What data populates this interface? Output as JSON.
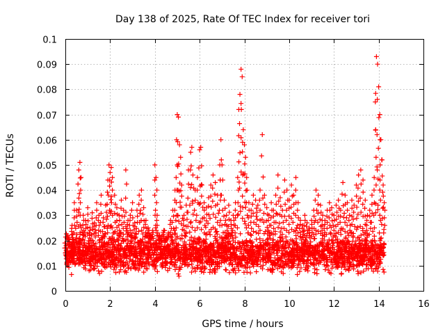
{
  "chart_data": {
    "type": "scatter",
    "title": "Day 138 of 2025, Rate Of TEC Index for receiver tori",
    "xlabel": "GPS time / hours",
    "ylabel": "ROTI / TECUs",
    "xlim": [
      0,
      16
    ],
    "ylim": [
      0,
      0.1
    ],
    "xticks": [
      0,
      2,
      4,
      6,
      8,
      10,
      12,
      14,
      16
    ],
    "yticks": [
      0,
      0.01,
      0.02,
      0.03,
      0.04,
      0.05,
      0.06,
      0.07,
      0.08,
      0.09,
      0.1
    ],
    "grid": true,
    "marker": "+",
    "color": "#ff0000",
    "data_x_range": [
      0,
      14.25
    ],
    "baseline_band": [
      0.005,
      0.025
    ],
    "series": [
      {
        "name": "ROTI",
        "points": [
          [
            0.0,
            0.015
          ],
          [
            0.1,
            0.022
          ],
          [
            0.2,
            0.018
          ],
          [
            0.3,
            0.026
          ],
          [
            0.4,
            0.035
          ],
          [
            0.5,
            0.032
          ],
          [
            0.6,
            0.048
          ],
          [
            0.65,
            0.051
          ],
          [
            0.7,
            0.045
          ],
          [
            0.8,
            0.03
          ],
          [
            0.9,
            0.028
          ],
          [
            1.0,
            0.033
          ],
          [
            1.1,
            0.025
          ],
          [
            1.2,
            0.031
          ],
          [
            1.3,
            0.027
          ],
          [
            1.4,
            0.035
          ],
          [
            1.5,
            0.03
          ],
          [
            1.6,
            0.038
          ],
          [
            1.7,
            0.029
          ],
          [
            1.8,
            0.034
          ],
          [
            1.9,
            0.044
          ],
          [
            1.95,
            0.05
          ],
          [
            2.0,
            0.047
          ],
          [
            2.05,
            0.049
          ],
          [
            2.1,
            0.045
          ],
          [
            2.2,
            0.038
          ],
          [
            2.3,
            0.033
          ],
          [
            2.4,
            0.03
          ],
          [
            2.5,
            0.036
          ],
          [
            2.6,
            0.032
          ],
          [
            2.7,
            0.048
          ],
          [
            2.8,
            0.028
          ],
          [
            2.9,
            0.03
          ],
          [
            3.0,
            0.035
          ],
          [
            3.1,
            0.027
          ],
          [
            3.2,
            0.032
          ],
          [
            3.3,
            0.038
          ],
          [
            3.4,
            0.04
          ],
          [
            3.5,
            0.033
          ],
          [
            3.6,
            0.028
          ],
          [
            3.7,
            0.025
          ],
          [
            3.8,
            0.022
          ],
          [
            3.9,
            0.024
          ],
          [
            4.0,
            0.05
          ],
          [
            4.05,
            0.045
          ],
          [
            4.1,
            0.03
          ],
          [
            4.2,
            0.022
          ],
          [
            4.3,
            0.02
          ],
          [
            4.4,
            0.024
          ],
          [
            4.5,
            0.021
          ],
          [
            4.6,
            0.023
          ],
          [
            4.7,
            0.028
          ],
          [
            4.8,
            0.032
          ],
          [
            4.9,
            0.04
          ],
          [
            4.95,
            0.045
          ],
          [
            5.0,
            0.07
          ],
          [
            5.05,
            0.069
          ],
          [
            5.1,
            0.058
          ],
          [
            5.15,
            0.053
          ],
          [
            5.2,
            0.042
          ],
          [
            5.3,
            0.03
          ],
          [
            5.4,
            0.034
          ],
          [
            5.5,
            0.048
          ],
          [
            5.6,
            0.055
          ],
          [
            5.65,
            0.057
          ],
          [
            5.7,
            0.046
          ],
          [
            5.8,
            0.04
          ],
          [
            5.9,
            0.045
          ],
          [
            6.0,
            0.056
          ],
          [
            6.05,
            0.057
          ],
          [
            6.1,
            0.042
          ],
          [
            6.2,
            0.035
          ],
          [
            6.3,
            0.033
          ],
          [
            6.4,
            0.037
          ],
          [
            6.5,
            0.042
          ],
          [
            6.6,
            0.046
          ],
          [
            6.7,
            0.043
          ],
          [
            6.8,
            0.038
          ],
          [
            6.9,
            0.05
          ],
          [
            6.95,
            0.06
          ],
          [
            7.0,
            0.05
          ],
          [
            7.1,
            0.036
          ],
          [
            7.2,
            0.03
          ],
          [
            7.3,
            0.034
          ],
          [
            7.4,
            0.028
          ],
          [
            7.5,
            0.03
          ],
          [
            7.6,
            0.035
          ],
          [
            7.7,
            0.045
          ],
          [
            7.75,
            0.072
          ],
          [
            7.8,
            0.078
          ],
          [
            7.85,
            0.088
          ],
          [
            7.9,
            0.085
          ],
          [
            7.95,
            0.064
          ],
          [
            8.0,
            0.058
          ],
          [
            8.05,
            0.053
          ],
          [
            8.1,
            0.045
          ],
          [
            8.2,
            0.035
          ],
          [
            8.3,
            0.032
          ],
          [
            8.4,
            0.038
          ],
          [
            8.5,
            0.036
          ],
          [
            8.6,
            0.034
          ],
          [
            8.7,
            0.04
          ],
          [
            8.8,
            0.062
          ],
          [
            8.9,
            0.038
          ],
          [
            9.0,
            0.033
          ],
          [
            9.1,
            0.03
          ],
          [
            9.2,
            0.035
          ],
          [
            9.3,
            0.032
          ],
          [
            9.4,
            0.038
          ],
          [
            9.5,
            0.046
          ],
          [
            9.6,
            0.037
          ],
          [
            9.7,
            0.032
          ],
          [
            9.8,
            0.044
          ],
          [
            9.9,
            0.04
          ],
          [
            10.0,
            0.036
          ],
          [
            10.1,
            0.042
          ],
          [
            10.2,
            0.038
          ],
          [
            10.3,
            0.045
          ],
          [
            10.4,
            0.035
          ],
          [
            10.5,
            0.028
          ],
          [
            10.6,
            0.026
          ],
          [
            10.7,
            0.03
          ],
          [
            10.8,
            0.027
          ],
          [
            10.9,
            0.025
          ],
          [
            11.0,
            0.028
          ],
          [
            11.1,
            0.032
          ],
          [
            11.2,
            0.04
          ],
          [
            11.3,
            0.038
          ],
          [
            11.4,
            0.034
          ],
          [
            11.5,
            0.03
          ],
          [
            11.6,
            0.028
          ],
          [
            11.7,
            0.032
          ],
          [
            11.8,
            0.035
          ],
          [
            11.9,
            0.033
          ],
          [
            12.0,
            0.03
          ],
          [
            12.1,
            0.034
          ],
          [
            12.2,
            0.036
          ],
          [
            12.3,
            0.032
          ],
          [
            12.4,
            0.043
          ],
          [
            12.5,
            0.038
          ],
          [
            12.6,
            0.035
          ],
          [
            12.7,
            0.03
          ],
          [
            12.8,
            0.036
          ],
          [
            12.9,
            0.034
          ],
          [
            13.0,
            0.042
          ],
          [
            13.1,
            0.046
          ],
          [
            13.2,
            0.048
          ],
          [
            13.3,
            0.044
          ],
          [
            13.4,
            0.036
          ],
          [
            13.5,
            0.03
          ],
          [
            13.6,
            0.032
          ],
          [
            13.7,
            0.038
          ],
          [
            13.8,
            0.045
          ],
          [
            13.85,
            0.075
          ],
          [
            13.9,
            0.093
          ],
          [
            13.95,
            0.09
          ],
          [
            14.0,
            0.081
          ],
          [
            14.05,
            0.07
          ],
          [
            14.1,
            0.06
          ],
          [
            14.15,
            0.052
          ],
          [
            14.2,
            0.042
          ],
          [
            14.25,
            0.035
          ]
        ]
      }
    ]
  }
}
